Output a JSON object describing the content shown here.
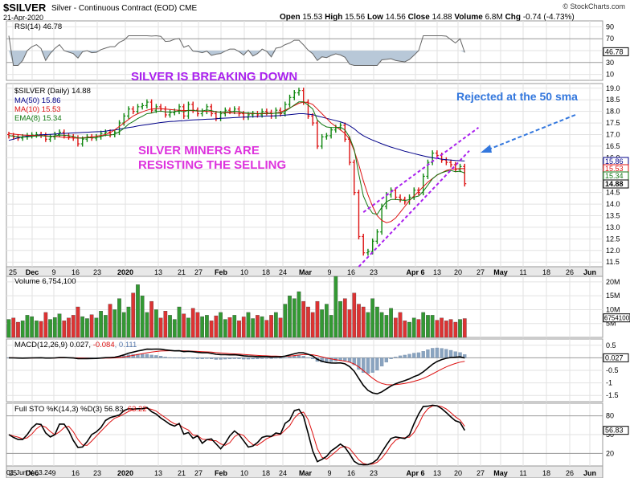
{
  "header": {
    "symbol": "$SILVER",
    "subtitle": "Silver - Continuous Contract (EOD)  CME",
    "date": "21-Apr-2020",
    "brand": "© StockCharts.com",
    "open": "15.53",
    "high": "15.56",
    "low": "14.56",
    "close": "14.88",
    "volume": "6.8M",
    "change": "-0.74 (-4.73%)"
  },
  "labels": {
    "rsi": "RSI(14) 46.78",
    "price": "$SILVER (Daily) 14.88",
    "ma50": "MA(50) 15.86",
    "ma10": "MA(10) 15.53",
    "ema8": "EMA(8) 15.34",
    "volume": "Volume 6,754,100",
    "macd_a": "MACD(12,26,9) 0.027, ",
    "macd_b": "-0.084",
    "macd_c": ", 0.111",
    "sto_a": "Full STO %K(14,3) %D(3) ",
    "sto_b": "56.83",
    "sto_c": ", 63.22",
    "corner": "01 Jun Y:63.24"
  },
  "annotations": {
    "breaking": "SILVER IS BREAKING DOWN",
    "miners1": "SILVER MINERS ARE",
    "miners2": "RESISTING THE SELLING",
    "rejected": "Rejected at the 50 sma"
  },
  "colors": {
    "up": "#118811",
    "down": "#dd1111",
    "vol_up": "#339933",
    "vol_down": "#dd3333",
    "ma50": "#000088",
    "ma10": "#dd1111",
    "ema8": "#117711",
    "purple": "#aa22ee",
    "magenta": "#dd33dd",
    "blue": "#3377dd",
    "hist": "#8aa4c0"
  },
  "chart_data": {
    "type": "candlestick",
    "x_axis": {
      "ticks": [
        "25",
        "Dec",
        "9",
        "16",
        "23",
        "2020",
        "13",
        "21",
        "27",
        "Feb",
        "10",
        "18",
        "24",
        "Mar",
        "9",
        "16",
        "23",
        "Apr 6",
        "13",
        "20",
        "27",
        "May",
        "11",
        "18",
        "26",
        "Jun"
      ]
    },
    "price": {
      "y_ticks": [
        11.5,
        12.0,
        12.5,
        13.0,
        13.5,
        14.0,
        14.5,
        15.0,
        15.5,
        16.0,
        16.5,
        17.0,
        17.5,
        18.0,
        18.5,
        19.0
      ],
      "ylim": [
        11.3,
        19.2
      ],
      "right_tags": [
        "15.86",
        "15.53",
        "15.34",
        "14.88"
      ],
      "close": [
        16.95,
        16.9,
        16.85,
        16.9,
        16.95,
        16.98,
        17.0,
        16.97,
        16.8,
        16.9,
        17.0,
        17.1,
        16.95,
        16.9,
        16.85,
        16.6,
        16.8,
        16.9,
        16.85,
        16.9,
        17.05,
        17.1,
        17.0,
        17.1,
        17.5,
        17.8,
        18.1,
        18.0,
        18.2,
        18.25,
        18.4,
        18.05,
        18.2,
        18.1,
        17.85,
        17.95,
        18.0,
        18.2,
        17.8,
        18.3,
        18.05,
        17.9,
        18.0,
        18.2,
        17.9,
        17.7,
        17.9,
        18.05,
        18.0,
        18.1,
        17.9,
        17.75,
        17.85,
        17.9,
        17.85,
        18.0,
        17.95,
        17.8,
        18.05,
        17.9,
        18.3,
        18.6,
        18.8,
        18.9,
        18.4,
        17.8,
        17.5,
        16.5,
        16.9,
        16.95,
        17.2,
        17.3,
        17.4,
        16.8,
        15.8,
        14.5,
        12.6,
        11.9,
        11.95,
        12.4,
        12.8,
        13.9,
        14.4,
        14.6,
        14.3,
        14.2,
        14.1,
        14.3,
        14.6,
        14.5,
        15.2,
        15.8,
        16.2,
        16.1,
        15.9,
        15.8,
        15.7,
        15.5,
        15.62,
        14.88
      ],
      "ma50": [
        16.75,
        16.8,
        16.86,
        16.9,
        16.93,
        16.95,
        16.97,
        16.99,
        17.0,
        17.01,
        17.02,
        17.04,
        17.05,
        17.06,
        17.07,
        17.08,
        17.09,
        17.1,
        17.11,
        17.12,
        17.13,
        17.15,
        17.18,
        17.2,
        17.23,
        17.27,
        17.3,
        17.33,
        17.37,
        17.4,
        17.43,
        17.46,
        17.49,
        17.52,
        17.54,
        17.56,
        17.57,
        17.59,
        17.6,
        17.62,
        17.63,
        17.64,
        17.65,
        17.66,
        17.67,
        17.68,
        17.7,
        17.71,
        17.72,
        17.73,
        17.74,
        17.75,
        17.76,
        17.77,
        17.78,
        17.79,
        17.8,
        17.8,
        17.81,
        17.82,
        17.84,
        17.86,
        17.88,
        17.9,
        17.9,
        17.88,
        17.86,
        17.8,
        17.75,
        17.7,
        17.65,
        17.6,
        17.55,
        17.48,
        17.38,
        17.25,
        17.08,
        16.95,
        16.85,
        16.76,
        16.68,
        16.6,
        16.53,
        16.46,
        16.4,
        16.34,
        16.28,
        16.23,
        16.18,
        16.13,
        16.08,
        16.04,
        16.0,
        15.97,
        15.94,
        15.92,
        15.9,
        15.88,
        15.87,
        15.86
      ],
      "ma10": [
        17.05,
        17.02,
        17.0,
        16.98,
        16.97,
        16.96,
        16.96,
        16.95,
        16.95,
        16.93,
        16.92,
        16.9,
        16.88,
        16.86,
        16.85,
        16.85,
        16.86,
        16.88,
        16.9,
        16.93,
        16.96,
        17.0,
        17.08,
        17.2,
        17.35,
        17.5,
        17.65,
        17.8,
        17.9,
        17.98,
        18.05,
        18.1,
        18.12,
        18.12,
        18.1,
        18.08,
        18.06,
        18.05,
        18.04,
        18.04,
        18.03,
        18.02,
        18.01,
        18.0,
        17.99,
        17.98,
        17.96,
        17.95,
        17.94,
        17.93,
        17.92,
        17.92,
        17.91,
        17.9,
        17.9,
        17.9,
        17.9,
        17.91,
        17.93,
        17.97,
        18.05,
        18.15,
        18.25,
        18.35,
        18.4,
        18.38,
        18.3,
        18.1,
        17.9,
        17.7,
        17.5,
        17.35,
        17.2,
        17.05,
        16.8,
        16.3,
        15.7,
        15.0,
        14.4,
        13.9,
        13.5,
        13.3,
        13.2,
        13.25,
        13.4,
        13.65,
        13.9,
        14.15,
        14.35,
        14.55,
        14.75,
        14.95,
        15.1,
        15.25,
        15.35,
        15.45,
        15.5,
        15.52,
        15.53,
        15.53
      ],
      "ema8": [
        16.95,
        16.93,
        16.9,
        16.89,
        16.9,
        16.92,
        16.94,
        16.95,
        16.93,
        16.92,
        16.94,
        16.98,
        16.97,
        16.95,
        16.92,
        16.85,
        16.84,
        16.86,
        16.86,
        16.87,
        16.92,
        16.97,
        16.98,
        17.01,
        17.12,
        17.27,
        17.45,
        17.56,
        17.69,
        17.79,
        17.9,
        17.93,
        17.99,
        18.01,
        17.98,
        17.97,
        17.98,
        18.03,
        17.98,
        18.05,
        18.05,
        18.02,
        18.02,
        18.06,
        18.03,
        17.98,
        17.96,
        17.98,
        17.98,
        18.01,
        17.99,
        17.94,
        17.93,
        17.92,
        17.9,
        17.92,
        17.92,
        17.9,
        17.93,
        17.92,
        18.0,
        18.13,
        18.28,
        18.41,
        18.41,
        18.27,
        18.1,
        17.63,
        17.44,
        17.33,
        17.3,
        17.3,
        17.32,
        17.2,
        16.89,
        16.36,
        15.29,
        14.35,
        13.9,
        13.6,
        13.56,
        13.86,
        14.1,
        14.2,
        14.2,
        14.18,
        14.16,
        14.19,
        14.3,
        14.35,
        14.55,
        14.82,
        15.09,
        15.26,
        15.35,
        15.42,
        15.45,
        15.4,
        15.42,
        15.34
      ],
      "trendlines": "two dashed purple rising lines forming a wedge from mid-March low to late April"
    },
    "rsi": {
      "y_ticks": [
        10,
        30,
        50,
        70,
        90
      ],
      "ylim": [
        0,
        100
      ],
      "value": 46.78
    },
    "volume": {
      "y_ticks": [
        "5M",
        "10M",
        "15M",
        "20M"
      ],
      "ylim": [
        0,
        22
      ],
      "last_tag": "6754100",
      "values": [
        6.5,
        7.0,
        5.5,
        6.0,
        8.0,
        7.5,
        6.0,
        5.8,
        9.0,
        6.5,
        7.2,
        8.5,
        6.0,
        7.0,
        8.0,
        11.0,
        7.5,
        6.8,
        8.2,
        7.0,
        9.5,
        8.0,
        12.0,
        10.0,
        14.0,
        9.0,
        11.0,
        16.0,
        19.0,
        15.0,
        9.0,
        13.0,
        10.0,
        7.0,
        9.5,
        8.0,
        6.5,
        11.0,
        8.5,
        7.0,
        10.5,
        9.0,
        7.5,
        8.0,
        6.0,
        7.8,
        9.0,
        6.5,
        7.2,
        8.0,
        6.0,
        7.4,
        9.0,
        6.8,
        8.0,
        7.5,
        6.2,
        8.0,
        9.0,
        7.0,
        12.0,
        15.0,
        14.0,
        16.5,
        13.0,
        11.0,
        9.0,
        13.0,
        10.0,
        12.0,
        8.0,
        22.0,
        13.0,
        14.0,
        10.0,
        16.0,
        12.0,
        11.0,
        9.0,
        14.0,
        11.0,
        9.0,
        8.0,
        10.5,
        7.0,
        9.0,
        6.0,
        5.5,
        7.0,
        6.5,
        9.0,
        8.0,
        8.0,
        6.2,
        7.0,
        6.0,
        6.5,
        5.5,
        6.5,
        6.8
      ]
    },
    "macd": {
      "y_ticks": [
        0.5,
        0.0,
        -0.5,
        -1.0,
        -1.5
      ],
      "ylim": [
        -1.75,
        0.75
      ],
      "macd": 0.027,
      "signal": -0.084,
      "histogram": 0.111
    },
    "stochastic": {
      "y_ticks": [
        20,
        50,
        80
      ],
      "ylim": [
        0,
        100
      ],
      "k": 56.83,
      "d": 63.22
    }
  }
}
